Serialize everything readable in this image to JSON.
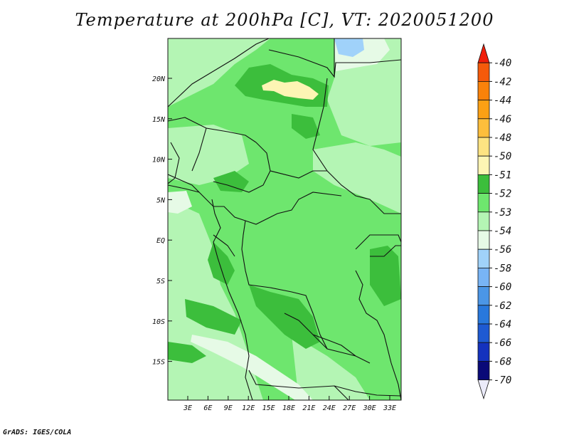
{
  "title": "Temperature at 200hPa [C], VT: 2020051200",
  "credit": "GrADS: IGES/COLA",
  "map": {
    "lat_labels": [
      "20N",
      "15N",
      "10N",
      "5N",
      "EQ",
      "5S",
      "10S",
      "15S"
    ],
    "lon_labels": [
      "3E",
      "6E",
      "9E",
      "12E",
      "15E",
      "18E",
      "21E",
      "24E",
      "27E",
      "30E",
      "33E"
    ]
  },
  "colorbar": {
    "labels": [
      "-40",
      "-42",
      "-44",
      "-46",
      "-48",
      "-50",
      "-51",
      "-52",
      "-53",
      "-54",
      "-56",
      "-58",
      "-60",
      "-62",
      "-64",
      "-66",
      "-68",
      "-70"
    ],
    "colors": [
      "#f01e0a",
      "#f55a0a",
      "#fa820a",
      "#fca014",
      "#fdbe3c",
      "#fde382",
      "#fdf5b4",
      "#3cbe3c",
      "#6ee66e",
      "#b4f5b4",
      "#e6fae6",
      "#a0d2fa",
      "#78b4f5",
      "#4b96e6",
      "#2878dc",
      "#1e5ad2",
      "#1432be",
      "#0a0a78",
      "#ebebfa"
    ]
  },
  "field_colors": {
    "green_darkest": "#3cbe3c",
    "green_mid": "#6ee66e",
    "green_light": "#b4f5b4",
    "green_pale": "#e6fae6",
    "blue_light": "#a0d2fa",
    "yellow": "#fdf5b4"
  }
}
